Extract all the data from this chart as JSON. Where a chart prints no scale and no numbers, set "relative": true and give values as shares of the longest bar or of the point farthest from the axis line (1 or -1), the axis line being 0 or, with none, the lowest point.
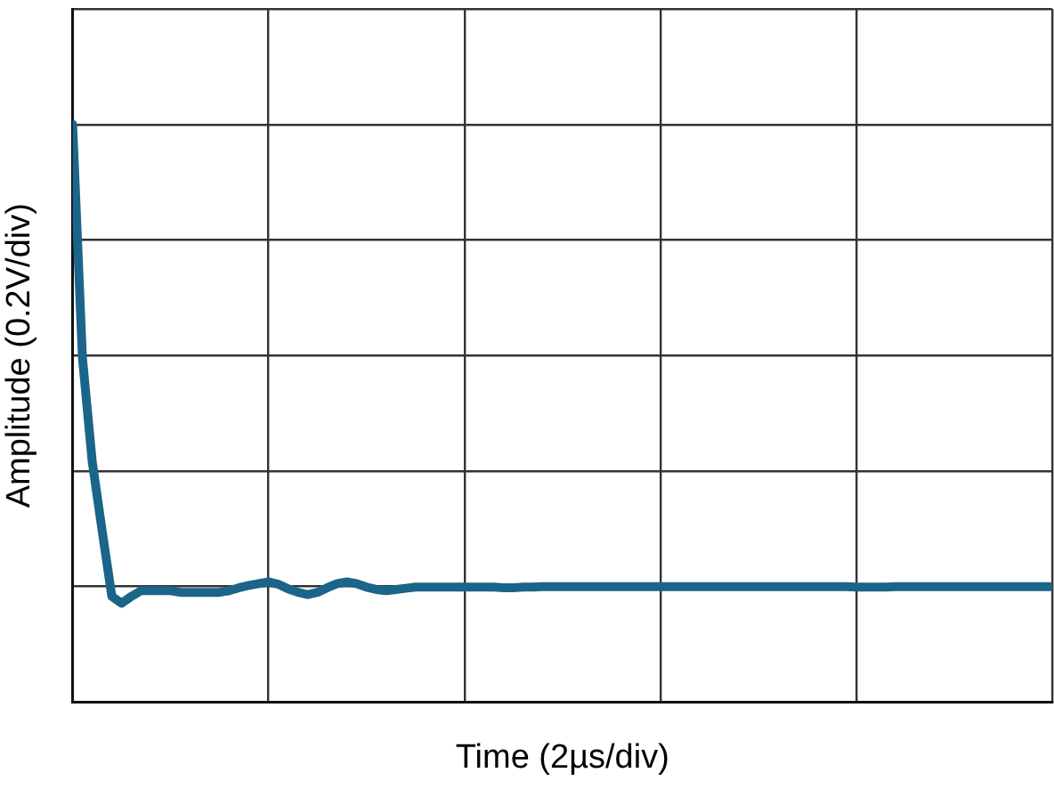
{
  "chart_data": {
    "type": "line",
    "xlabel": "Time (2µs/div)",
    "ylabel": "Amplitude (0.2V/div)",
    "relative": true,
    "grid": true,
    "legend": false,
    "marker": "none",
    "line_style": "solid",
    "categories": [
      null,
      null,
      null,
      null,
      null,
      null,
      null,
      null,
      null,
      null,
      null,
      null,
      null,
      null,
      null,
      null,
      null,
      null,
      null,
      null,
      null,
      null,
      null,
      null,
      null,
      null,
      null,
      null,
      null,
      null,
      null,
      null,
      null,
      null,
      null,
      null,
      null,
      null,
      null,
      null,
      null,
      null,
      null,
      null,
      null,
      null,
      null,
      null,
      null,
      null,
      null,
      null,
      null,
      null,
      null,
      null,
      null,
      null,
      null,
      null,
      null,
      null,
      null,
      null,
      null,
      null,
      null,
      null,
      null,
      null,
      null,
      null,
      null,
      null,
      null,
      null,
      null,
      null,
      null,
      null,
      null,
      null,
      null,
      null,
      null,
      null,
      null,
      null,
      null,
      null,
      null,
      null,
      null,
      null,
      null,
      null,
      null,
      null,
      null,
      null,
      null
    ],
    "series": [
      {
        "color": "#1a6589",
        "values": [
          1,
          0.596,
          0.416,
          0.298,
          0.183,
          0.171,
          0.183,
          0.193,
          0.193,
          0.193,
          0.193,
          0.19,
          0.19,
          0.19,
          0.19,
          0.19,
          0.193,
          0.198,
          0.202,
          0.205,
          0.208,
          0.204,
          0.196,
          0.19,
          0.186,
          0.19,
          0.198,
          0.205,
          0.208,
          0.205,
          0.199,
          0.195,
          0.193,
          0.195,
          0.197,
          0.199,
          0.199,
          0.199,
          0.199,
          0.199,
          0.199,
          0.199,
          0.199,
          0.199,
          0.198,
          0.198,
          0.199,
          0.199,
          0.2,
          0.2,
          0.2,
          0.2,
          0.2,
          0.2,
          0.2,
          0.2,
          0.2,
          0.2,
          0.2,
          0.2,
          0.2,
          0.2,
          0.2,
          0.2,
          0.2,
          0.2,
          0.2,
          0.2,
          0.2,
          0.2,
          0.2,
          0.2,
          0.2,
          0.2,
          0.2,
          0.2,
          0.2,
          0.2,
          0.2,
          0.2,
          0.199,
          0.199,
          0.199,
          0.199,
          0.2,
          0.2,
          0.2,
          0.2,
          0.2,
          0.2,
          0.2,
          0.2,
          0.2,
          0.2,
          0.2,
          0.2,
          0.2,
          0.2,
          0.2,
          0.2,
          0.2
        ]
      }
    ]
  }
}
